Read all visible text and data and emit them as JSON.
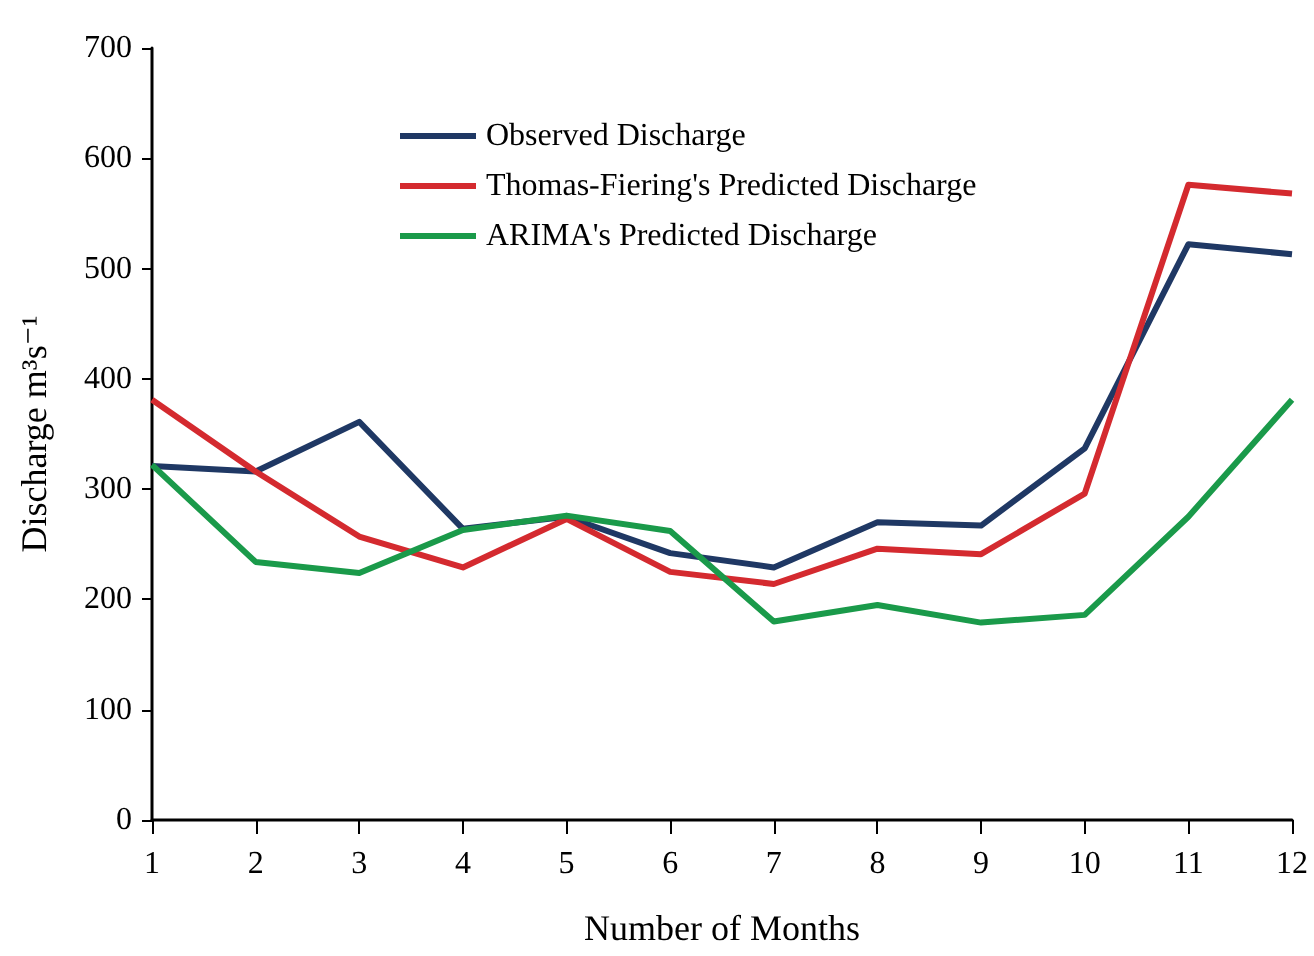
{
  "chart_data": {
    "type": "line",
    "xlabel": "Number of Months",
    "ylabel": "Discharge m³s⁻¹",
    "x": [
      1,
      2,
      3,
      4,
      5,
      6,
      7,
      8,
      9,
      10,
      11,
      12
    ],
    "xlim": [
      1,
      12
    ],
    "xticks": [
      1,
      2,
      3,
      4,
      5,
      6,
      7,
      8,
      9,
      10,
      11,
      12
    ],
    "ylim": [
      0,
      700
    ],
    "yticks": [
      0,
      100,
      200,
      300,
      400,
      500,
      600,
      700
    ],
    "grid": false,
    "legend": "top left",
    "marker": "none",
    "line_style": "solid",
    "series": [
      {
        "name": "Observed Discharge",
        "color": "#1f3864",
        "values": [
          321,
          316,
          361,
          264,
          275,
          242,
          229,
          270,
          267,
          337,
          522,
          513
        ]
      },
      {
        "name": "Thomas-Fiering's Predicted Discharge",
        "color": "#d42a2f",
        "values": [
          381,
          316,
          257,
          229,
          273,
          225,
          214,
          246,
          241,
          296,
          576,
          568
        ]
      },
      {
        "name": "ARIMA's Predicted Discharge",
        "color": "#1a9a4a",
        "values": [
          322,
          234,
          224,
          263,
          276,
          262,
          180,
          195,
          179,
          186,
          275,
          381
        ]
      }
    ]
  }
}
